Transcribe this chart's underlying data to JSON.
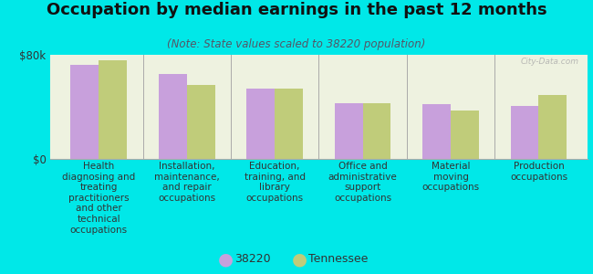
{
  "title": "Occupation by median earnings in the past 12 months",
  "subtitle": "(Note: State values scaled to 38220 population)",
  "background_color": "#00e8e8",
  "plot_bg_color": "#eef2e0",
  "categories": [
    "Health\ndiagnosing and\ntreating\npractitioners\nand other\ntechnical\noccupations",
    "Installation,\nmaintenance,\nand repair\noccupations",
    "Education,\ntraining, and\nlibrary\noccupations",
    "Office and\nadministrative\nsupport\noccupations",
    "Material\nmoving\noccupations",
    "Production\noccupations"
  ],
  "values_38220": [
    72000,
    65000,
    54000,
    43000,
    42000,
    41000
  ],
  "values_tennessee": [
    76000,
    57000,
    54000,
    43000,
    37000,
    49000
  ],
  "color_38220": "#c8a0dc",
  "color_tennessee": "#c0cc7a",
  "ylim": [
    0,
    80000
  ],
  "ytick_labels": [
    "$0",
    "$80k"
  ],
  "legend_label_38220": "38220",
  "legend_label_tennessee": "Tennessee",
  "watermark": "City-Data.com",
  "title_fontsize": 13,
  "subtitle_fontsize": 8.5,
  "xlabel_fontsize": 7.5
}
